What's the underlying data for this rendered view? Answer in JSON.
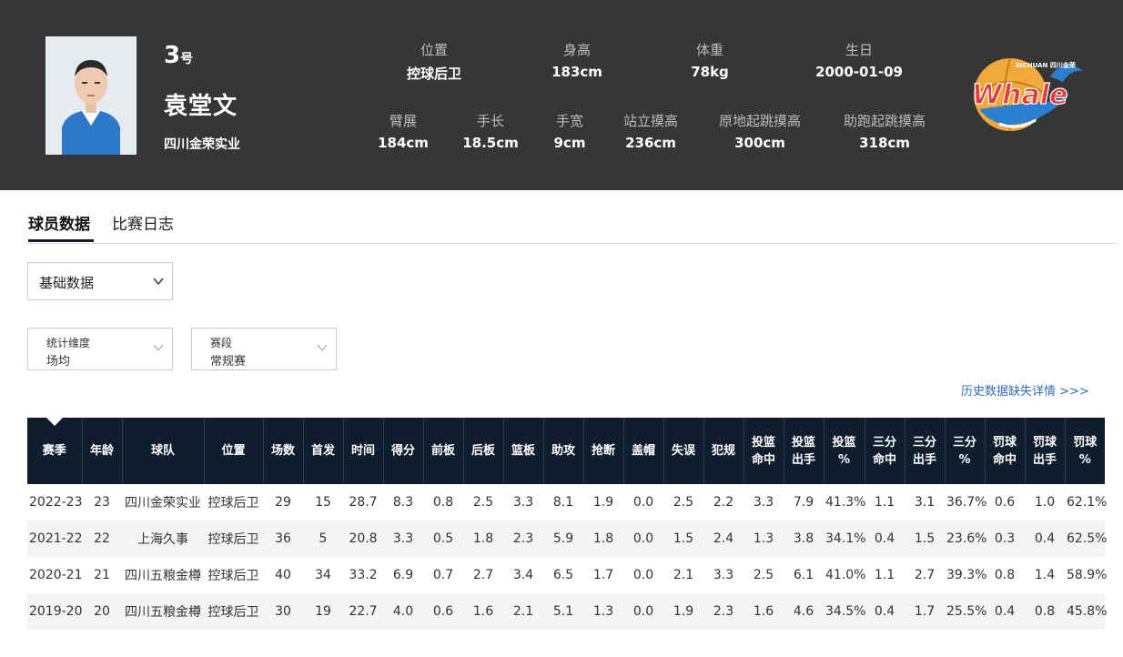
{
  "player": {
    "number": "3",
    "number_suffix": "号",
    "name": "袁堂文",
    "team": "四川金荣实业",
    "photo_alt": "player-photo"
  },
  "profile": [
    {
      "label": "位置",
      "value": "控球后卫"
    },
    {
      "label": "身高",
      "value": "183cm"
    },
    {
      "label": "体重",
      "value": "78kg"
    },
    {
      "label": "生日",
      "value": "2000-01-09"
    },
    {
      "label": "臂展",
      "value": "184cm"
    },
    {
      "label": "手长",
      "value": "18.5cm"
    },
    {
      "label": "手宽",
      "value": "9cm"
    },
    {
      "label": "站立摸高",
      "value": "236cm"
    },
    {
      "label": "原地起跳摸高",
      "value": "300cm"
    },
    {
      "label": "助跑起跳摸高",
      "value": "318cm"
    }
  ],
  "logo": {
    "text": "Whale",
    "sub": "SICHUAN 四川金荣"
  },
  "tabs": [
    {
      "label": "球员数据",
      "active": true
    },
    {
      "label": "比赛日志",
      "active": false
    }
  ],
  "data_type_select": {
    "value": "基础数据"
  },
  "filters": [
    {
      "label": "统计维度",
      "value": "场均"
    },
    {
      "label": "赛段",
      "value": "常规赛"
    }
  ],
  "history_link": "历史数据缺失详情 >>>",
  "table": {
    "headers": [
      [
        "赛季"
      ],
      [
        "年龄"
      ],
      [
        "球队"
      ],
      [
        "位置"
      ],
      [
        "场数"
      ],
      [
        "首发"
      ],
      [
        "时间"
      ],
      [
        "得分"
      ],
      [
        "前板"
      ],
      [
        "后板"
      ],
      [
        "篮板"
      ],
      [
        "助攻"
      ],
      [
        "抢断"
      ],
      [
        "盖帽"
      ],
      [
        "失误"
      ],
      [
        "犯规"
      ],
      [
        "投篮",
        "命中"
      ],
      [
        "投篮",
        "出手"
      ],
      [
        "投篮",
        "%"
      ],
      [
        "三分",
        "命中"
      ],
      [
        "三分",
        "出手"
      ],
      [
        "三分",
        "%"
      ],
      [
        "罚球",
        "命中"
      ],
      [
        "罚球",
        "出手"
      ],
      [
        "罚球",
        "%"
      ]
    ],
    "rows": [
      [
        "2022-23",
        "23",
        "四川金荣实业",
        "控球后卫",
        "29",
        "15",
        "28.7",
        "8.3",
        "0.8",
        "2.5",
        "3.3",
        "8.1",
        "1.9",
        "0.0",
        "2.5",
        "2.2",
        "3.3",
        "7.9",
        "41.3%",
        "1.1",
        "3.1",
        "36.7%",
        "0.6",
        "1.0",
        "62.1%"
      ],
      [
        "2021-22",
        "22",
        "上海久事",
        "控球后卫",
        "36",
        "5",
        "20.8",
        "3.3",
        "0.5",
        "1.8",
        "2.3",
        "5.9",
        "1.8",
        "0.0",
        "1.5",
        "2.4",
        "1.3",
        "3.8",
        "34.1%",
        "0.4",
        "1.5",
        "23.6%",
        "0.3",
        "0.4",
        "62.5%"
      ],
      [
        "2020-21",
        "21",
        "四川五粮金樽",
        "控球后卫",
        "40",
        "34",
        "33.2",
        "6.9",
        "0.7",
        "2.7",
        "3.4",
        "6.5",
        "1.7",
        "0.0",
        "2.1",
        "3.3",
        "2.5",
        "6.1",
        "41.0%",
        "1.1",
        "2.7",
        "39.3%",
        "0.8",
        "1.4",
        "58.9%"
      ],
      [
        "2019-20",
        "20",
        "四川五粮金樽",
        "控球后卫",
        "30",
        "19",
        "22.7",
        "4.0",
        "0.6",
        "1.6",
        "2.1",
        "5.1",
        "1.3",
        "0.0",
        "1.9",
        "2.3",
        "1.6",
        "4.6",
        "34.5%",
        "0.4",
        "1.7",
        "25.5%",
        "0.4",
        "0.8",
        "45.8%"
      ]
    ]
  },
  "colors": {
    "banner": "#363636",
    "table_header": "#0e1e2c",
    "link": "#2f6db5",
    "logo_primary": "#2a7fd0",
    "logo_accent": "#e23b3b"
  }
}
